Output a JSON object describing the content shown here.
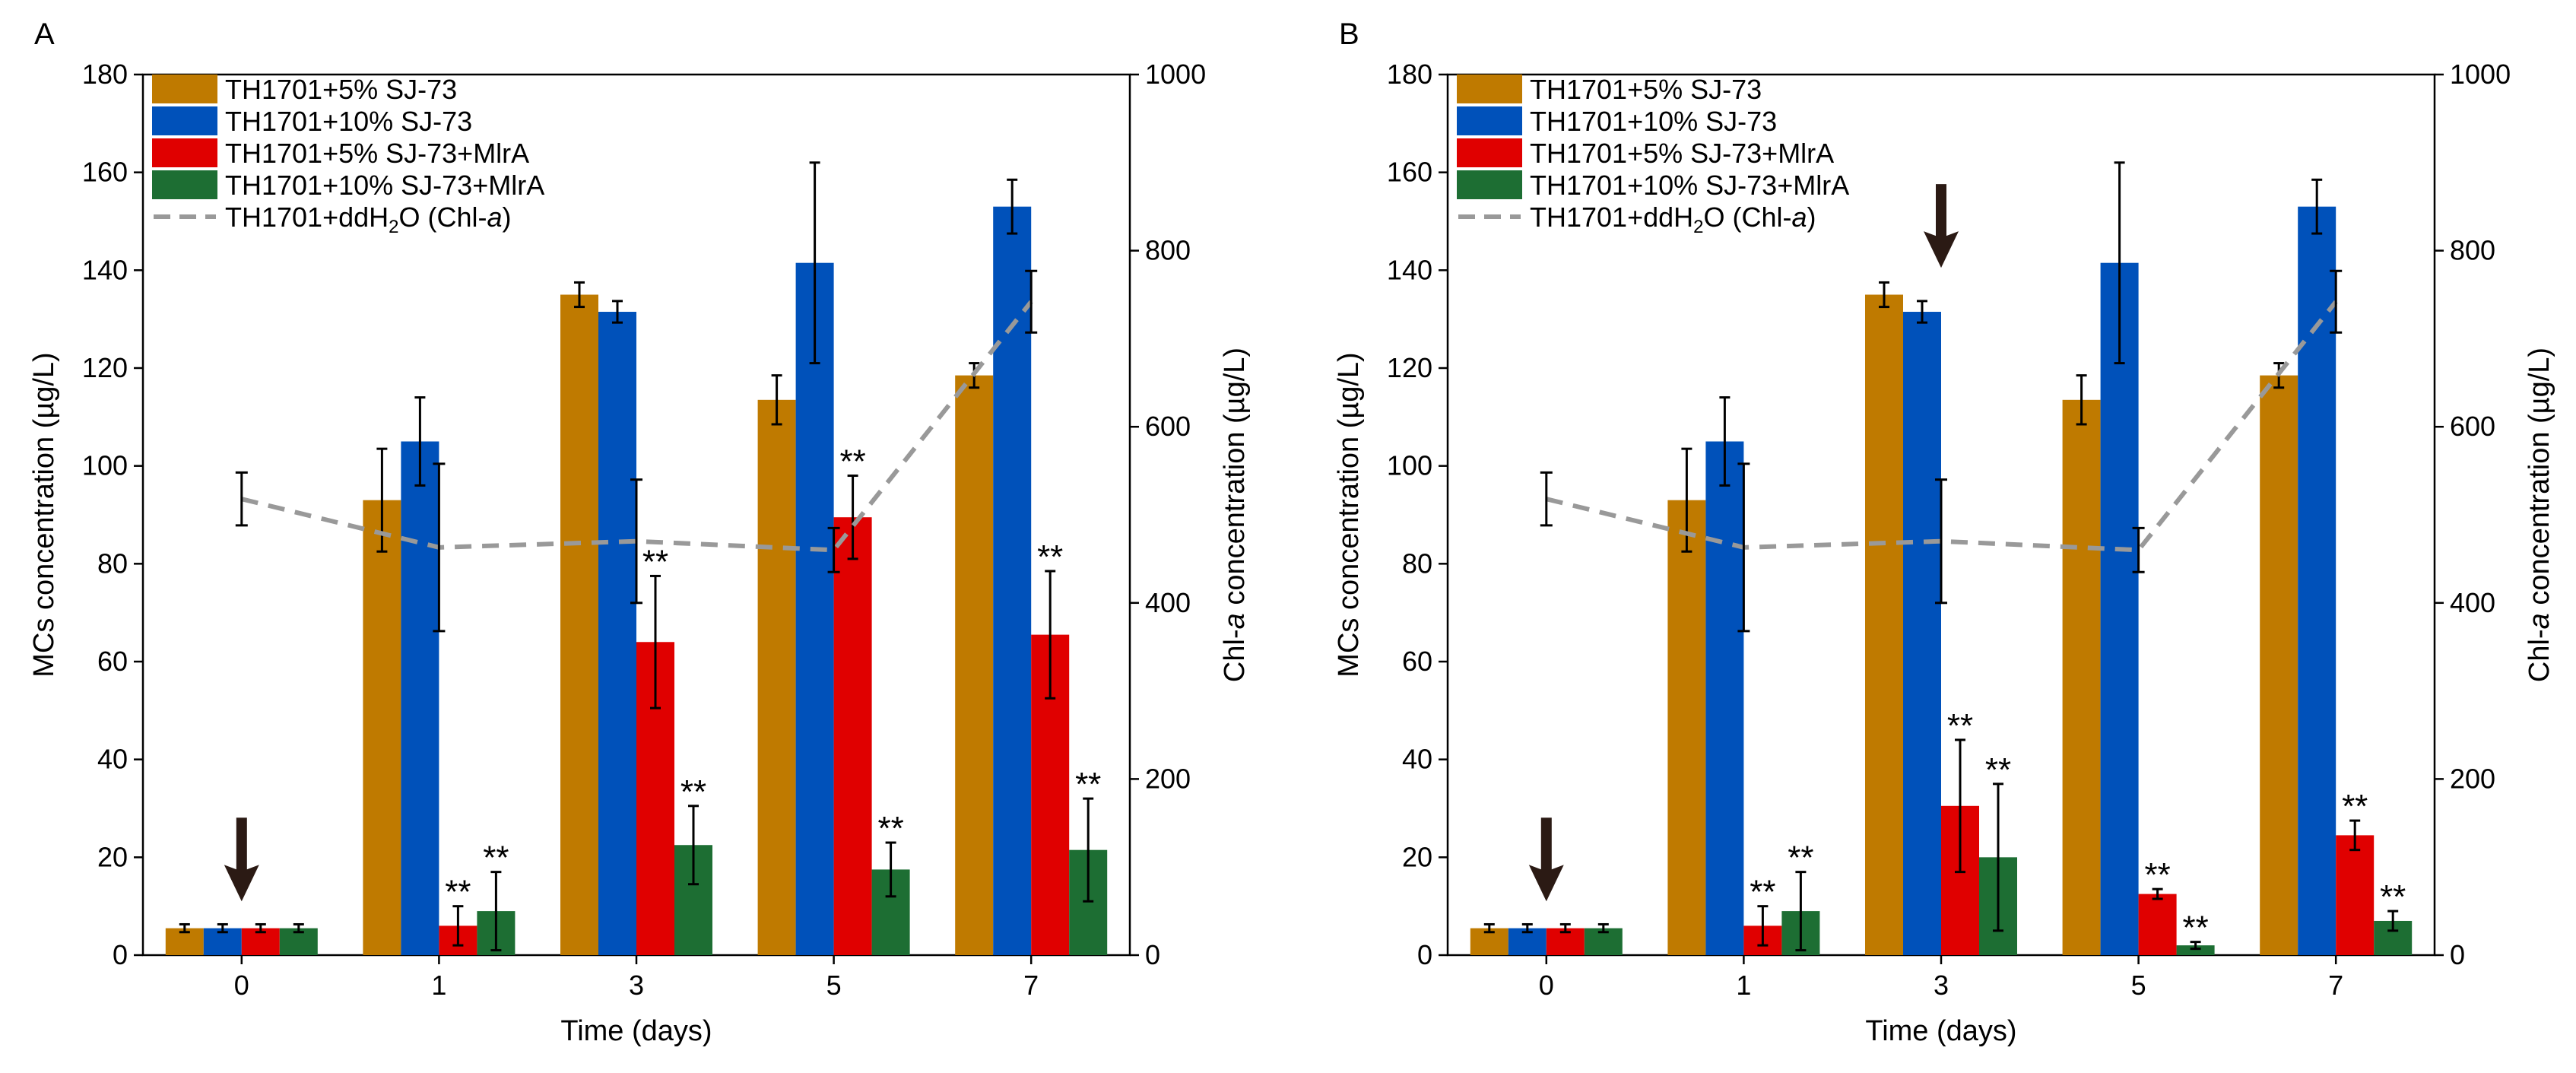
{
  "colors": {
    "s5": "#BF7A00",
    "s10": "#0051BA",
    "s5m": "#E00000",
    "s10m": "#1D6E33",
    "chl": "#999999",
    "arrow": "#2B1A14"
  },
  "chart_data": [
    {
      "type": "bar",
      "panel_label": "A",
      "xlabel": "Time (days)",
      "ylabel": "MCs concentration (µg/L)",
      "y2label_prefix": "Chl-",
      "y2label_italic": "a",
      "y2label_suffix": " concentration (µg/L)",
      "categories": [
        "0",
        "1",
        "3",
        "5",
        "7"
      ],
      "ylim": [
        0,
        180
      ],
      "y_ticks": [
        "0",
        "20",
        "40",
        "60",
        "80",
        "100",
        "120",
        "140",
        "160",
        "180"
      ],
      "y2lim": [
        0,
        1000
      ],
      "y2_ticks": [
        "0",
        "200",
        "400",
        "600",
        "800",
        "1000"
      ],
      "legend_position": "top-left",
      "series": [
        {
          "name": "TH1701+5% SJ-73",
          "color_key": "s5",
          "values": [
            5.5,
            93,
            135,
            113.5,
            118.5
          ],
          "errors": [
            0.8,
            10.5,
            2.5,
            5,
            2.5
          ],
          "marks": [
            "",
            "",
            "",
            "",
            ""
          ]
        },
        {
          "name": "TH1701+10% SJ-73",
          "color_key": "s10",
          "values": [
            5.5,
            105,
            131.5,
            141.5,
            153
          ],
          "errors": [
            0.8,
            9,
            2.2,
            20.5,
            5.5
          ],
          "marks": [
            "",
            "",
            "",
            "",
            ""
          ]
        },
        {
          "name": "TH1701+5% SJ-73+MlrA",
          "color_key": "s5m",
          "values": [
            5.5,
            6,
            64,
            89.5,
            65.5
          ],
          "errors": [
            0.8,
            4,
            13.5,
            8.5,
            13
          ],
          "marks": [
            "",
            "**",
            "**",
            "**",
            "**"
          ]
        },
        {
          "name": "TH1701+10% SJ-73+MlrA",
          "color_key": "s10m",
          "values": [
            5.5,
            9,
            22.5,
            17.5,
            21.5
          ],
          "errors": [
            0.8,
            8,
            8,
            5.5,
            10.5
          ],
          "marks": [
            "",
            "**",
            "**",
            "**",
            "**"
          ]
        }
      ],
      "line_series": {
        "name_prefix": "TH1701+ddH",
        "name_sub": "2",
        "name_mid": "O (Chl-",
        "name_italic": "a",
        "name_suffix": ")",
        "axis": "right",
        "color_key": "chl",
        "values": [
          518,
          463,
          470,
          460,
          742
        ],
        "errors": [
          30,
          95,
          70,
          25,
          35
        ]
      },
      "arrows": [
        {
          "category_index": 0
        }
      ]
    },
    {
      "type": "bar",
      "panel_label": "B",
      "xlabel": "Time (days)",
      "ylabel": "MCs concentration (µg/L)",
      "y2label_prefix": "Chl-",
      "y2label_italic": "a",
      "y2label_suffix": " concentration (µg/L)",
      "categories": [
        "0",
        "1",
        "3",
        "5",
        "7"
      ],
      "ylim": [
        0,
        180
      ],
      "y_ticks": [
        "0",
        "20",
        "40",
        "60",
        "80",
        "100",
        "120",
        "140",
        "160",
        "180"
      ],
      "y2lim": [
        0,
        1000
      ],
      "y2_ticks": [
        "0",
        "200",
        "400",
        "600",
        "800",
        "1000"
      ],
      "legend_position": "top-left",
      "series": [
        {
          "name": "TH1701+5% SJ-73",
          "color_key": "s5",
          "values": [
            5.5,
            93,
            135,
            113.5,
            118.5
          ],
          "errors": [
            0.8,
            10.5,
            2.5,
            5,
            2.5
          ],
          "marks": [
            "",
            "",
            "",
            "",
            ""
          ]
        },
        {
          "name": "TH1701+10% SJ-73",
          "color_key": "s10",
          "values": [
            5.5,
            105,
            131.5,
            141.5,
            153
          ],
          "errors": [
            0.8,
            9,
            2.2,
            20.5,
            5.5
          ],
          "marks": [
            "",
            "",
            "",
            "",
            ""
          ]
        },
        {
          "name": "TH1701+5% SJ-73+MlrA",
          "color_key": "s5m",
          "values": [
            5.5,
            6,
            30.5,
            12.5,
            24.5
          ],
          "errors": [
            0.8,
            4,
            13.5,
            1,
            3
          ],
          "marks": [
            "",
            "**",
            "**",
            "**",
            "**"
          ]
        },
        {
          "name": "TH1701+10% SJ-73+MlrA",
          "color_key": "s10m",
          "values": [
            5.5,
            9,
            20,
            2,
            7
          ],
          "errors": [
            0.8,
            8,
            15,
            0.7,
            2
          ],
          "marks": [
            "",
            "**",
            "**",
            "**",
            "**"
          ]
        }
      ],
      "line_series": {
        "name_prefix": "TH1701+ddH",
        "name_sub": "2",
        "name_mid": "O (Chl-",
        "name_italic": "a",
        "name_suffix": ")",
        "axis": "right",
        "color_key": "chl",
        "values": [
          518,
          463,
          470,
          460,
          742
        ],
        "errors": [
          30,
          95,
          70,
          25,
          35
        ]
      },
      "arrows": [
        {
          "category_index": 0
        },
        {
          "category_index": 2
        }
      ]
    }
  ]
}
